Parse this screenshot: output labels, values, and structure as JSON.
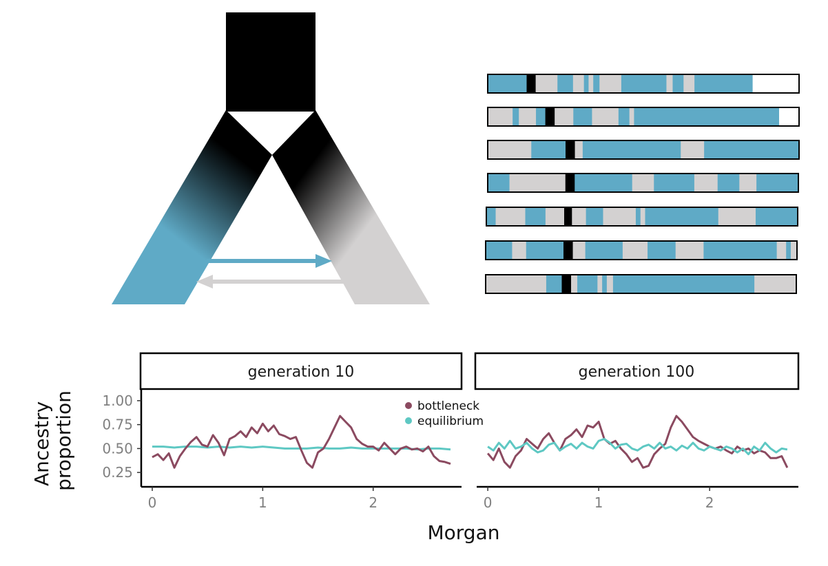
{
  "colors": {
    "blue": "#5faac6",
    "grey": "#d3d1d1",
    "black": "#000000",
    "bottleneck": "#8b4a60",
    "equilibrium": "#5ec8c3"
  },
  "tract": {
    "chromosomes": [
      [
        [
          "blue",
          0.125
        ],
        [
          "black",
          0.029
        ],
        [
          "grey",
          0.07
        ],
        [
          "blue",
          0.05
        ],
        [
          "grey",
          0.035
        ],
        [
          "blue",
          0.015
        ],
        [
          "grey",
          0.015
        ],
        [
          "blue",
          0.02
        ],
        [
          "grey",
          0.07
        ],
        [
          "blue",
          0.145
        ],
        [
          "grey",
          0.02
        ],
        [
          "blue",
          0.035
        ],
        [
          "grey",
          0.035
        ],
        [
          "blue",
          0.186
        ]
      ],
      [
        [
          "grey",
          0.08
        ],
        [
          "blue",
          0.02
        ],
        [
          "grey",
          0.055
        ],
        [
          "blue",
          0.03
        ],
        [
          "black",
          0.03
        ],
        [
          "grey",
          0.06
        ],
        [
          "blue",
          0.06
        ],
        [
          "grey",
          0.085
        ],
        [
          "blue",
          0.035
        ],
        [
          "grey",
          0.015
        ],
        [
          "blue",
          0.465
        ]
      ],
      [
        [
          "grey",
          0.14
        ],
        [
          "blue",
          0.11
        ],
        [
          "black",
          0.03
        ],
        [
          "grey",
          0.025
        ],
        [
          "blue",
          0.315
        ],
        [
          "grey",
          0.075
        ],
        [
          "blue",
          0.305
        ]
      ],
      [
        [
          "blue",
          0.07
        ],
        [
          "grey",
          0.18
        ],
        [
          "black",
          0.03
        ],
        [
          "blue",
          0.185
        ],
        [
          "grey",
          0.07
        ],
        [
          "blue",
          0.13
        ],
        [
          "grey",
          0.075
        ],
        [
          "blue",
          0.07
        ],
        [
          "grey",
          0.055
        ],
        [
          "blue",
          0.135
        ]
      ],
      [
        [
          "blue",
          0.03
        ],
        [
          "grey",
          0.095
        ],
        [
          "blue",
          0.065
        ],
        [
          "grey",
          0.06
        ],
        [
          "black",
          0.025
        ],
        [
          "grey",
          0.045
        ],
        [
          "blue",
          0.055
        ],
        [
          "grey",
          0.105
        ],
        [
          "blue",
          0.015
        ],
        [
          "grey",
          0.015
        ],
        [
          "blue",
          0.235
        ],
        [
          "grey",
          0.12
        ],
        [
          "blue",
          0.135
        ]
      ],
      [
        [
          "blue",
          0.085
        ],
        [
          "grey",
          0.045
        ],
        [
          "blue",
          0.12
        ],
        [
          "black",
          0.03
        ],
        [
          "grey",
          0.04
        ],
        [
          "blue",
          0.12
        ],
        [
          "grey",
          0.08
        ],
        [
          "blue",
          0.09
        ],
        [
          "grey",
          0.09
        ],
        [
          "blue",
          0.235
        ],
        [
          "grey",
          0.03
        ],
        [
          "blue",
          0.015
        ],
        [
          "grey",
          0.02
        ]
      ],
      [
        [
          "grey",
          0.195
        ],
        [
          "blue",
          0.05
        ],
        [
          "black",
          0.03
        ],
        [
          "grey",
          0.02
        ],
        [
          "blue",
          0.065
        ],
        [
          "grey",
          0.015
        ],
        [
          "blue",
          0.015
        ],
        [
          "grey",
          0.02
        ],
        [
          "blue",
          0.455
        ],
        [
          "grey",
          0.135
        ]
      ]
    ]
  },
  "chart_data": [
    {
      "type": "line",
      "strip": "generation 10",
      "ylabel": "Ancestry\nproportion",
      "xlabel": "Morgan",
      "xlim": [
        -0.1,
        2.8
      ],
      "ylim": [
        0.1,
        1.1
      ],
      "xticks": [
        0,
        1,
        2
      ],
      "yticks": [
        1.0,
        0.75,
        0.5,
        0.25
      ],
      "ytick_labels": [
        "1.00",
        "0.75",
        "0.50",
        "0.25"
      ],
      "legend": {
        "position": "top-right",
        "entries": [
          "bottleneck",
          "equilibrium"
        ]
      },
      "series": [
        {
          "name": "bottleneck",
          "x": [
            0,
            0.05,
            0.1,
            0.15,
            0.2,
            0.25,
            0.3,
            0.35,
            0.4,
            0.45,
            0.5,
            0.55,
            0.6,
            0.65,
            0.7,
            0.75,
            0.8,
            0.85,
            0.9,
            0.95,
            1.0,
            1.05,
            1.1,
            1.15,
            1.2,
            1.25,
            1.3,
            1.35,
            1.4,
            1.45,
            1.5,
            1.55,
            1.6,
            1.65,
            1.7,
            1.75,
            1.8,
            1.85,
            1.9,
            1.95,
            2.0,
            2.05,
            2.1,
            2.15,
            2.2,
            2.25,
            2.3,
            2.35,
            2.4,
            2.45,
            2.5,
            2.55,
            2.6,
            2.65,
            2.7
          ],
          "y": [
            0.41,
            0.44,
            0.38,
            0.45,
            0.3,
            0.42,
            0.5,
            0.57,
            0.62,
            0.54,
            0.52,
            0.64,
            0.56,
            0.43,
            0.6,
            0.63,
            0.68,
            0.62,
            0.72,
            0.66,
            0.76,
            0.68,
            0.74,
            0.65,
            0.63,
            0.6,
            0.62,
            0.48,
            0.35,
            0.3,
            0.46,
            0.5,
            0.6,
            0.72,
            0.84,
            0.78,
            0.72,
            0.6,
            0.55,
            0.52,
            0.52,
            0.48,
            0.56,
            0.5,
            0.44,
            0.5,
            0.52,
            0.49,
            0.5,
            0.47,
            0.52,
            0.42,
            0.37,
            0.36,
            0.34
          ]
        },
        {
          "name": "equilibrium",
          "x": [
            0,
            0.1,
            0.2,
            0.3,
            0.4,
            0.5,
            0.6,
            0.7,
            0.8,
            0.9,
            1.0,
            1.1,
            1.2,
            1.3,
            1.4,
            1.5,
            1.6,
            1.7,
            1.8,
            1.9,
            2.0,
            2.1,
            2.2,
            2.3,
            2.4,
            2.5,
            2.6,
            2.7
          ],
          "y": [
            0.52,
            0.52,
            0.51,
            0.52,
            0.52,
            0.51,
            0.52,
            0.51,
            0.52,
            0.51,
            0.52,
            0.51,
            0.5,
            0.5,
            0.5,
            0.51,
            0.5,
            0.5,
            0.51,
            0.5,
            0.5,
            0.5,
            0.5,
            0.5,
            0.49,
            0.5,
            0.5,
            0.49
          ]
        }
      ]
    },
    {
      "type": "line",
      "strip": "generation 100",
      "xlim": [
        -0.1,
        2.8
      ],
      "ylim": [
        0.1,
        1.1
      ],
      "xticks": [
        0,
        1,
        2
      ],
      "series": [
        {
          "name": "bottleneck",
          "x": [
            0,
            0.05,
            0.1,
            0.15,
            0.2,
            0.25,
            0.3,
            0.35,
            0.4,
            0.45,
            0.5,
            0.55,
            0.6,
            0.65,
            0.7,
            0.75,
            0.8,
            0.85,
            0.9,
            0.95,
            1.0,
            1.05,
            1.1,
            1.15,
            1.2,
            1.25,
            1.3,
            1.35,
            1.4,
            1.45,
            1.5,
            1.55,
            1.6,
            1.65,
            1.7,
            1.75,
            1.8,
            1.85,
            1.9,
            1.95,
            2.0,
            2.05,
            2.1,
            2.15,
            2.2,
            2.25,
            2.3,
            2.35,
            2.4,
            2.45,
            2.5,
            2.55,
            2.6,
            2.65,
            2.7
          ],
          "y": [
            0.45,
            0.38,
            0.5,
            0.36,
            0.3,
            0.42,
            0.48,
            0.6,
            0.55,
            0.5,
            0.6,
            0.66,
            0.56,
            0.48,
            0.6,
            0.64,
            0.7,
            0.62,
            0.74,
            0.72,
            0.78,
            0.6,
            0.55,
            0.58,
            0.5,
            0.44,
            0.36,
            0.4,
            0.3,
            0.32,
            0.44,
            0.5,
            0.55,
            0.72,
            0.84,
            0.78,
            0.7,
            0.62,
            0.58,
            0.55,
            0.52,
            0.5,
            0.52,
            0.48,
            0.45,
            0.52,
            0.48,
            0.5,
            0.45,
            0.48,
            0.46,
            0.4,
            0.4,
            0.42,
            0.3
          ]
        },
        {
          "name": "equilibrium",
          "x": [
            0,
            0.05,
            0.1,
            0.15,
            0.2,
            0.25,
            0.3,
            0.35,
            0.4,
            0.45,
            0.5,
            0.55,
            0.6,
            0.65,
            0.7,
            0.75,
            0.8,
            0.85,
            0.9,
            0.95,
            1.0,
            1.05,
            1.1,
            1.15,
            1.2,
            1.25,
            1.3,
            1.35,
            1.4,
            1.45,
            1.5,
            1.55,
            1.6,
            1.65,
            1.7,
            1.75,
            1.8,
            1.85,
            1.9,
            1.95,
            2.0,
            2.05,
            2.1,
            2.15,
            2.2,
            2.25,
            2.3,
            2.35,
            2.4,
            2.45,
            2.5,
            2.55,
            2.6,
            2.65,
            2.7
          ],
          "y": [
            0.52,
            0.48,
            0.56,
            0.5,
            0.58,
            0.5,
            0.52,
            0.56,
            0.5,
            0.46,
            0.48,
            0.54,
            0.56,
            0.48,
            0.52,
            0.55,
            0.5,
            0.56,
            0.52,
            0.5,
            0.58,
            0.6,
            0.56,
            0.5,
            0.54,
            0.55,
            0.5,
            0.48,
            0.52,
            0.54,
            0.5,
            0.56,
            0.5,
            0.52,
            0.48,
            0.53,
            0.5,
            0.56,
            0.5,
            0.48,
            0.52,
            0.5,
            0.48,
            0.52,
            0.5,
            0.46,
            0.5,
            0.44,
            0.52,
            0.48,
            0.56,
            0.5,
            0.46,
            0.5,
            0.49
          ]
        }
      ]
    }
  ]
}
